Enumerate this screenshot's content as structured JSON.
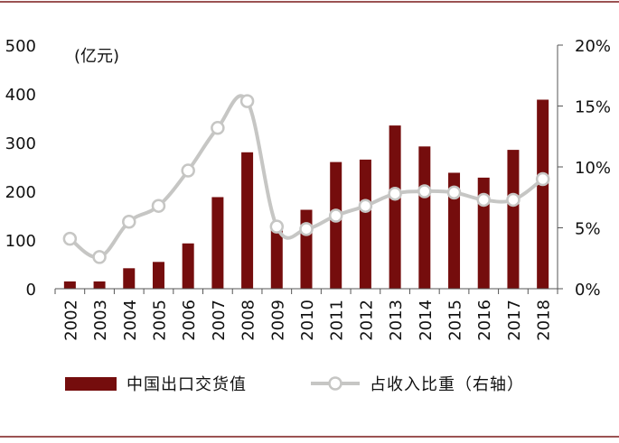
{
  "chart_data": {
    "type": "bar+line",
    "categories": [
      "2002",
      "2003",
      "2004",
      "2005",
      "2006",
      "2007",
      "2008",
      "2009",
      "2010",
      "2011",
      "2012",
      "2013",
      "2014",
      "2015",
      "2016",
      "2017",
      "2018"
    ],
    "series": [
      {
        "name": "中国出口交货值",
        "type": "bar",
        "axis": "left",
        "values": [
          15,
          15,
          42,
          55,
          93,
          188,
          280,
          130,
          162,
          260,
          265,
          335,
          292,
          238,
          228,
          285,
          388
        ]
      },
      {
        "name": "占收入比重（右轴）",
        "type": "line",
        "axis": "right",
        "values": [
          4.1,
          2.6,
          5.5,
          6.8,
          9.7,
          13.2,
          15.4,
          5.1,
          4.9,
          6.0,
          6.8,
          7.8,
          8.0,
          7.9,
          7.3,
          7.3,
          9.0
        ]
      }
    ],
    "y_left": {
      "unit_label": "(亿元)",
      "ticks": [
        "0",
        "100",
        "200",
        "300",
        "400",
        "500"
      ],
      "lim": [
        0,
        500
      ]
    },
    "y_right": {
      "ticks": [
        "0%",
        "5%",
        "10%",
        "15%",
        "20%"
      ],
      "lim": [
        0,
        20
      ]
    },
    "legend_position": "bottom",
    "grid": false
  },
  "colors": {
    "bar": "#750d0d",
    "line": "#c6c6c4",
    "marker_fill": "#ffffff",
    "frame_rule": "#7a1a1a"
  }
}
